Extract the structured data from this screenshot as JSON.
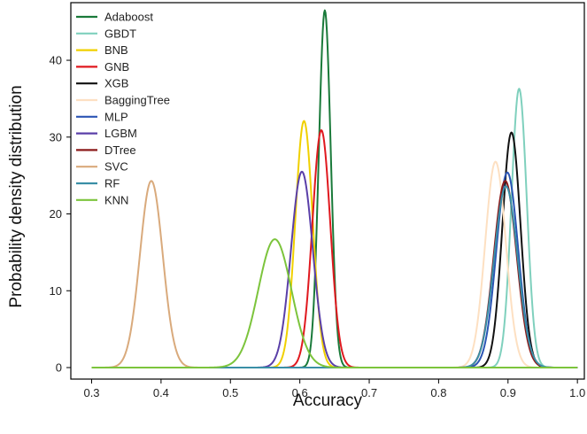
{
  "chart_data": {
    "type": "line",
    "title": "",
    "xlabel": "Accuracy",
    "ylabel": "Probability density distribution",
    "xlim": [
      0.27,
      1.01
    ],
    "ylim": [
      -1.5,
      47.5
    ],
    "xticks": [
      "0.3",
      "0.4",
      "0.5",
      "0.6",
      "0.7",
      "0.8",
      "0.9",
      "1.0"
    ],
    "yticks": [
      "0",
      "10",
      "20",
      "30",
      "40"
    ],
    "grid": false,
    "legend_position": "top-left",
    "series": [
      {
        "name": "Adaboost",
        "color": "#1a7a3a",
        "mean": 0.636,
        "peak": 46.5,
        "sd": 0.00858
      },
      {
        "name": "GBDT",
        "color": "#7fd0bd",
        "mean": 0.916,
        "peak": 36.3,
        "sd": 0.01099
      },
      {
        "name": "BNB",
        "color": "#f0d000",
        "mean": 0.606,
        "peak": 32.1,
        "sd": 0.01243
      },
      {
        "name": "GNB",
        "color": "#e0191f",
        "mean": 0.631,
        "peak": 30.9,
        "sd": 0.01291
      },
      {
        "name": "XGB",
        "color": "#111111",
        "mean": 0.905,
        "peak": 30.6,
        "sd": 0.01304
      },
      {
        "name": "BaggingTree",
        "color": "#fde0c2",
        "mean": 0.882,
        "peak": 26.8,
        "sd": 0.01489
      },
      {
        "name": "MLP",
        "color": "#2b55b4",
        "mean": 0.899,
        "peak": 25.4,
        "sd": 0.01571
      },
      {
        "name": "LGBM",
        "color": "#5a3fa8",
        "mean": 0.603,
        "peak": 25.5,
        "sd": 0.01564
      },
      {
        "name": "DTree",
        "color": "#8b1a1a",
        "mean": 0.896,
        "peak": 24.3,
        "sd": 0.01642
      },
      {
        "name": "SVC",
        "color": "#d9aa7c",
        "mean": 0.386,
        "peak": 24.3,
        "sd": 0.01642
      },
      {
        "name": "RF",
        "color": "#3a8fa6",
        "mean": 0.897,
        "peak": 23.6,
        "sd": 0.0169
      },
      {
        "name": "KNN",
        "color": "#7cc43c",
        "mean": 0.564,
        "peak": 16.7,
        "sd": 0.02389
      }
    ]
  }
}
